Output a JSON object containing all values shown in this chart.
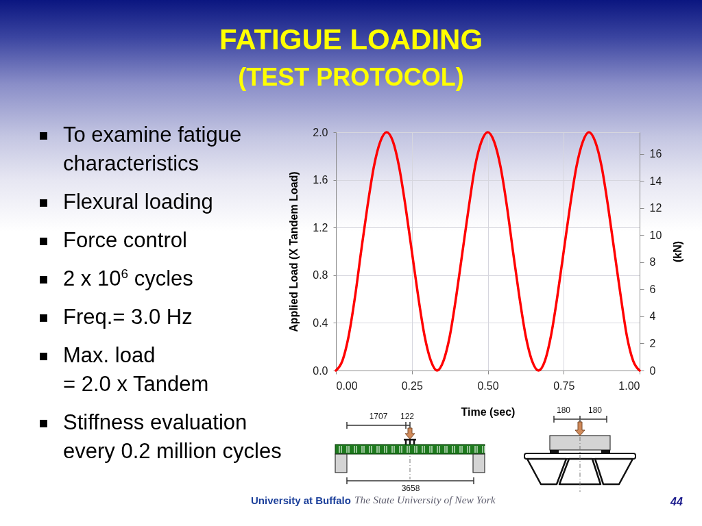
{
  "chart_data": {
    "type": "line",
    "title": "FATIGUE LOADING",
    "subtitle": "(TEST PROTOCOL)",
    "xlabel": "Time (sec)",
    "ylabel": "Applied Load (X Tandem Load)",
    "y2label": "(kN)",
    "x": [
      0,
      0.021,
      0.042,
      0.063,
      0.083,
      0.104,
      0.125,
      0.146,
      0.167,
      0.188,
      0.208,
      0.229,
      0.25,
      0.271,
      0.292,
      0.313,
      0.333,
      0.354,
      0.375,
      0.396,
      0.417,
      0.438,
      0.458,
      0.479,
      0.5,
      0.521,
      0.542,
      0.563,
      0.583,
      0.604,
      0.625,
      0.646,
      0.667,
      0.688,
      0.708,
      0.729,
      0.75,
      0.771,
      0.792,
      0.813,
      0.833,
      0.854,
      0.875,
      0.896,
      0.917,
      0.938,
      0.958,
      0.979,
      1
    ],
    "series": [
      {
        "color": "#ff0000",
        "values": [
          0,
          0.08,
          0.29,
          0.62,
          1,
          1.38,
          1.71,
          1.92,
          2,
          1.92,
          1.71,
          1.38,
          1,
          0.62,
          0.29,
          0.08,
          0,
          0.08,
          0.29,
          0.62,
          1,
          1.38,
          1.71,
          1.92,
          2,
          1.92,
          1.71,
          1.38,
          1,
          0.62,
          0.29,
          0.08,
          0,
          0.08,
          0.29,
          0.62,
          1,
          1.38,
          1.71,
          1.92,
          2,
          1.92,
          1.71,
          1.38,
          1,
          0.62,
          0.29,
          0.08,
          0
        ]
      }
    ],
    "xlim": [
      0,
      1
    ],
    "xticks": [
      {
        "value": 0,
        "label": "0.00"
      },
      0.25,
      {
        "value": 0.5,
        "label": "0.50"
      },
      0.75,
      {
        "value": 1,
        "label": "1.00"
      }
    ],
    "ylim": [
      0,
      2
    ],
    "yticks": [
      {
        "value": 0,
        "label": "0.0"
      },
      0.4,
      0.8,
      1.2,
      1.6,
      {
        "value": 2,
        "label": "2.0"
      }
    ],
    "y2lim": [
      0,
      17.6
    ],
    "y2ticks": [
      0,
      2,
      4,
      6,
      8,
      10,
      12,
      14,
      16
    ],
    "grid": true,
    "annotations": [
      "▪ To examine fatigue characteristics",
      "▪ Flexural loading",
      "▪ Force control",
      "▪ 2 x 10$^{6}$ cycles",
      "▪ Freq.= 3.0 Hz",
      "▪ Max. load\n= 2.0 x Tandem",
      "▪ Stiffness evaluation every 0.2 million cycles",
      "1707",
      "122",
      "3658",
      "180",
      "180",
      "University at Buffalo",
      "The State University of New York",
      "44"
    ]
  }
}
